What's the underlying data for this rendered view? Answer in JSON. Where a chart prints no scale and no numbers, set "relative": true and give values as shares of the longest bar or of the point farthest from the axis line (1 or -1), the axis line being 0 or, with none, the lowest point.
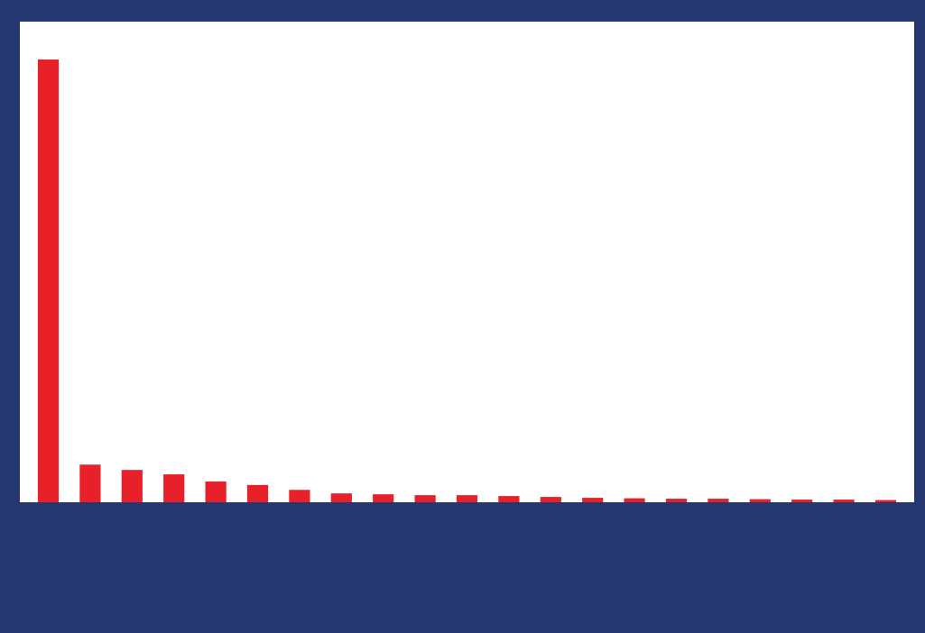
{
  "chart_data": {
    "type": "bar",
    "relative": true,
    "categories": [
      null,
      null,
      null,
      null,
      null,
      null,
      null,
      null,
      null,
      null,
      null,
      null,
      null,
      null,
      null,
      null,
      null,
      null,
      null,
      null,
      null
    ],
    "values": [
      1,
      0.085,
      0.073,
      0.063,
      0.047,
      0.039,
      0.028,
      0.02,
      0.018,
      0.016,
      0.016,
      0.014,
      0.012,
      0.01,
      0.009,
      0.008,
      0.008,
      0.007,
      0.006,
      0.006,
      0.005
    ],
    "color": "#e8202a"
  }
}
